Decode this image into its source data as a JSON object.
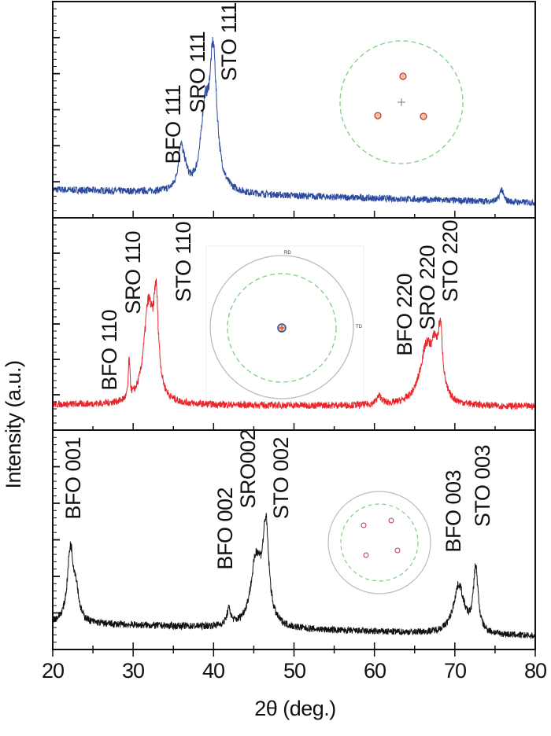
{
  "chart_data": {
    "type": "line",
    "layout": "three stacked panels sharing x axis",
    "xlabel": "2θ (deg.)",
    "ylabel": "Intensity (a.u.)",
    "xlim": [
      20,
      80
    ],
    "xticks": [
      "20",
      "30",
      "40",
      "50",
      "60",
      "70",
      "80"
    ],
    "y_tick_labels": "none",
    "grid": false,
    "panels": [
      {
        "color": "#2b4aa0",
        "baseline": {
          "start": 0.13,
          "end": 0.07
        },
        "peaks": [
          {
            "x": 35.9,
            "height": 0.17,
            "width": 0.35
          },
          {
            "x": 36.4,
            "height": 0.08,
            "width": 0.5
          },
          {
            "x": 38.9,
            "height": 0.32,
            "width": 0.6
          },
          {
            "x": 39.95,
            "height": 0.62,
            "width": 0.55
          },
          {
            "x": 75.8,
            "height": 0.06,
            "width": 0.25
          }
        ],
        "annotations": [
          {
            "text": "BFO 111",
            "x": 35.9
          },
          {
            "text": "SRO 111",
            "x": 38.9
          },
          {
            "text": "STO 111",
            "x": 39.95
          }
        ],
        "inset": {
          "type": "pole-figure",
          "peaks": 3
        }
      },
      {
        "color": "#e8262b",
        "baseline": {
          "start": 0.12,
          "end": 0.11
        },
        "peaks": [
          {
            "x": 29.5,
            "height": 0.18,
            "width": 0.12
          },
          {
            "x": 31.9,
            "height": 0.45,
            "width": 0.7
          },
          {
            "x": 32.85,
            "height": 0.42,
            "width": 0.35
          },
          {
            "x": 60.6,
            "height": 0.04,
            "width": 0.4
          },
          {
            "x": 66.5,
            "height": 0.27,
            "width": 1.0
          },
          {
            "x": 67.5,
            "height": 0.15,
            "width": 0.4
          },
          {
            "x": 68.2,
            "height": 0.3,
            "width": 0.35
          }
        ],
        "annotations": [
          {
            "text": "BFO 110",
            "x": 29.5
          },
          {
            "text": "SRO 110",
            "x": 31.9
          },
          {
            "text": "STO 110",
            "x": 32.85
          },
          {
            "text": "BFO 220",
            "x": 66.5
          },
          {
            "text": "SRO 220",
            "x": 67.5
          },
          {
            "text": "STO 220",
            "x": 68.2
          }
        ],
        "inset": {
          "type": "pole-figure",
          "peaks": 1,
          "labels": [
            "RD",
            "TD"
          ]
        }
      },
      {
        "color": "#111111",
        "baseline": {
          "start": 0.12,
          "end": 0.06
        },
        "peaks": [
          {
            "x": 22.2,
            "height": 0.33,
            "width": 0.45
          },
          {
            "x": 22.9,
            "height": 0.12,
            "width": 0.4
          },
          {
            "x": 41.9,
            "height": 0.07,
            "width": 0.3
          },
          {
            "x": 45.3,
            "height": 0.3,
            "width": 0.8
          },
          {
            "x": 46.5,
            "height": 0.42,
            "width": 0.45
          },
          {
            "x": 70.5,
            "height": 0.22,
            "width": 0.8
          },
          {
            "x": 72.6,
            "height": 0.29,
            "width": 0.35
          }
        ],
        "annotations": [
          {
            "text": "BFO 001",
            "x": 22.2
          },
          {
            "text": "BFO 002",
            "x": 41.9
          },
          {
            "text": "SRO002",
            "x": 45.3
          },
          {
            "text": "STO 002",
            "x": 46.5
          },
          {
            "text": "BFO 003",
            "x": 70.5
          },
          {
            "text": "STO 003",
            "x": 72.6
          }
        ],
        "inset": {
          "type": "pole-figure",
          "peaks": 4
        }
      }
    ]
  }
}
